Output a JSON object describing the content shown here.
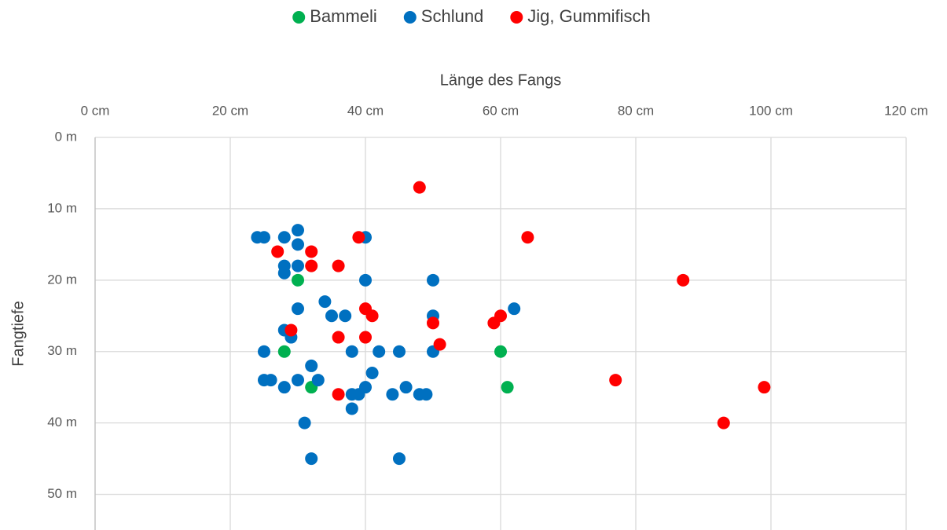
{
  "chart_data": {
    "type": "scatter",
    "x_label": "Länge des Fangs",
    "y_label": "Fangtiefe",
    "xlim": [
      0,
      120
    ],
    "ylim": [
      0,
      55
    ],
    "y_inverted": true,
    "x_axis_top": true,
    "grid": true,
    "legend": "top",
    "xticks": [
      {
        "value": 0,
        "label": "0 cm"
      },
      {
        "value": 20,
        "label": "20 cm"
      },
      {
        "value": 40,
        "label": "40 cm"
      },
      {
        "value": 60,
        "label": "60 cm"
      },
      {
        "value": 80,
        "label": "80 cm"
      },
      {
        "value": 100,
        "label": "100 cm"
      },
      {
        "value": 120,
        "label": "120 cm"
      }
    ],
    "yticks": [
      {
        "value": 0,
        "label": "0 m"
      },
      {
        "value": 10,
        "label": "10 m"
      },
      {
        "value": 20,
        "label": "20 m"
      },
      {
        "value": 30,
        "label": "30 m"
      },
      {
        "value": 40,
        "label": "40 m"
      },
      {
        "value": 50,
        "label": "50 m"
      }
    ],
    "series": [
      {
        "name": "Bammeli",
        "color": "#00b050",
        "x": [
          30,
          28,
          32,
          60,
          61
        ],
        "values": [
          20,
          30,
          35,
          30,
          35
        ]
      },
      {
        "name": "Schlund",
        "color": "#0070c0",
        "x": [
          24,
          25,
          28,
          30,
          30,
          40,
          28,
          28,
          30,
          40,
          50,
          34,
          30,
          35,
          37,
          50,
          62,
          28,
          29,
          25,
          38,
          42,
          45,
          50,
          32,
          41,
          25,
          26,
          30,
          33,
          28,
          40,
          46,
          38,
          39,
          44,
          48,
          49,
          38,
          31,
          32,
          45
        ],
        "values": [
          14,
          14,
          14,
          13,
          15,
          14,
          18,
          19,
          18,
          20,
          20,
          23,
          24,
          25,
          25,
          25,
          24,
          27,
          28,
          30,
          30,
          30,
          30,
          30,
          32,
          33,
          34,
          34,
          34,
          34,
          35,
          35,
          35,
          36,
          36,
          36,
          36,
          36,
          38,
          40,
          45,
          45
        ]
      },
      {
        "name": "Jig, Gummifisch",
        "color": "#ff0000",
        "x": [
          48,
          39,
          64,
          27,
          32,
          32,
          36,
          87,
          40,
          41,
          60,
          59,
          50,
          29,
          36,
          40,
          51,
          77,
          99,
          36,
          93
        ],
        "values": [
          7,
          14,
          14,
          16,
          16,
          18,
          18,
          20,
          24,
          25,
          25,
          26,
          26,
          27,
          28,
          28,
          29,
          34,
          35,
          36,
          40
        ]
      }
    ]
  }
}
